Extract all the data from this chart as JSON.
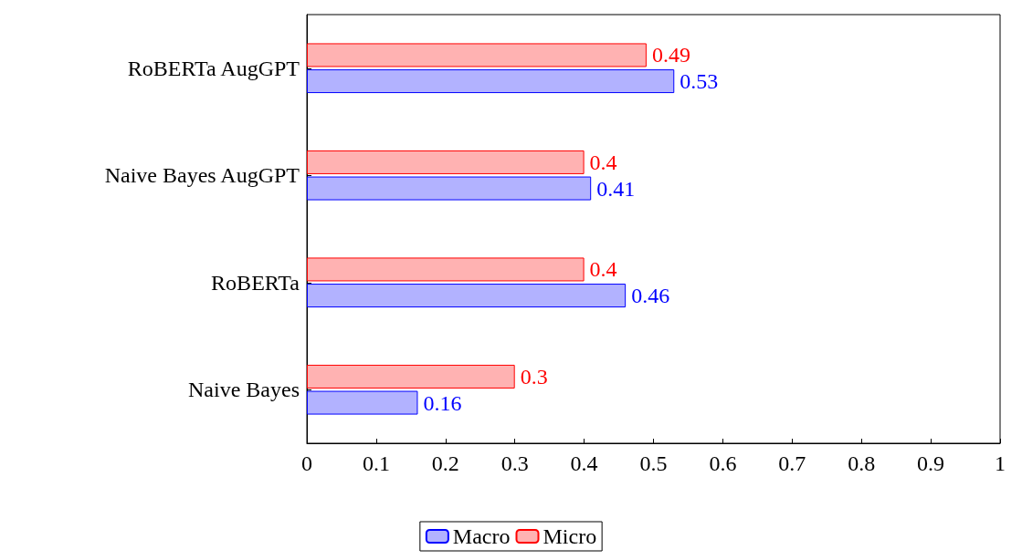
{
  "chart_data": {
    "type": "bar",
    "orientation": "horizontal",
    "categories": [
      "RoBERTa AugGPT",
      "Naive Bayes AugGPT",
      "RoBERTa",
      "Naive Bayes"
    ],
    "series": [
      {
        "name": "Macro",
        "color": "#0000ff",
        "values": [
          0.53,
          0.41,
          0.46,
          0.16
        ]
      },
      {
        "name": "Micro",
        "color": "#ff0000",
        "values": [
          0.49,
          0.4,
          0.4,
          0.3
        ]
      }
    ],
    "xlim": [
      0,
      1
    ],
    "xticks": [
      0,
      0.1,
      0.2,
      0.3,
      0.4,
      0.5,
      0.6,
      0.7,
      0.8,
      0.9,
      1
    ],
    "data_labels": true,
    "grid": false,
    "legend": "bottom"
  }
}
